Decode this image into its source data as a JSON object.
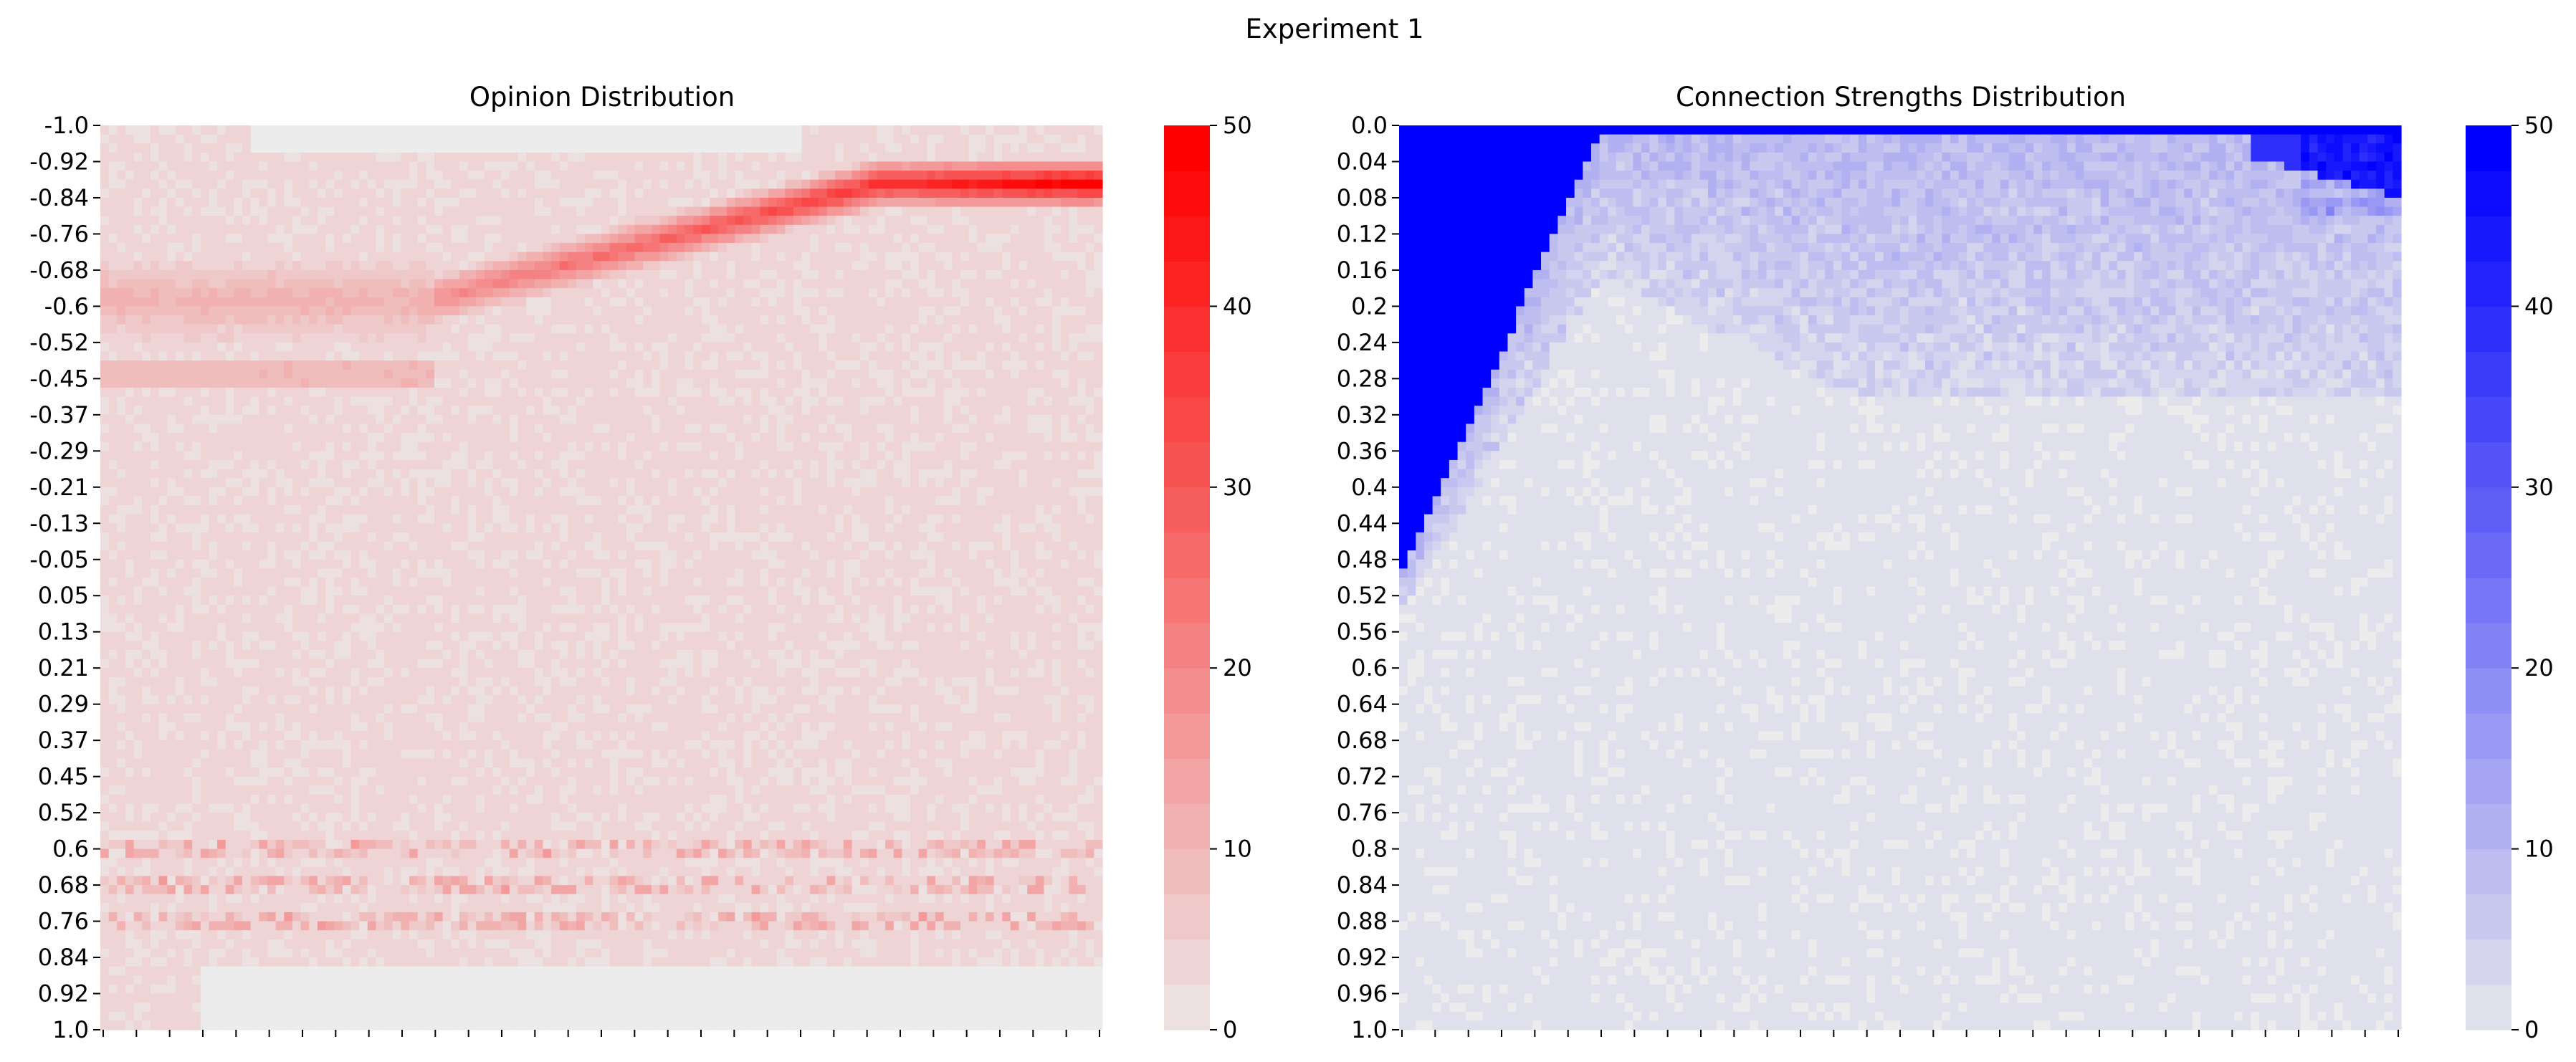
{
  "figure_title": "Experiment 1",
  "chart_data": [
    {
      "type": "heatmap",
      "title": "Opinion Distribution",
      "xlabel": "",
      "ylabel": "",
      "ytick_labels": [
        "-1.0",
        "-0.92",
        "-0.84",
        "-0.76",
        "-0.68",
        "-0.6",
        "-0.52",
        "-0.45",
        "-0.37",
        "-0.29",
        "-0.21",
        "-0.13",
        "-0.05",
        "0.05",
        "0.13",
        "0.21",
        "0.29",
        "0.37",
        "0.45",
        "0.52",
        "0.6",
        "0.68",
        "0.76",
        "0.84",
        "0.92",
        "1.0"
      ],
      "x_tick_count": 31,
      "x_tick_labels": [],
      "colorbar": {
        "min": 0,
        "max": 50,
        "ticks": [
          0,
          10,
          20,
          30,
          40,
          50
        ],
        "low_color": "#ececec",
        "high_color": "#ff0000",
        "levels": 20
      },
      "description_features": {
        "background_level": 3,
        "dense_band": {
          "start_opinion": -0.62,
          "end_opinion": -0.88,
          "start_col_fraction": 0.38,
          "peak_value": 48
        },
        "lower_band_opinions": [
          0.6,
          0.68,
          0.76
        ],
        "lower_band_value": 12
      }
    },
    {
      "type": "heatmap",
      "title": "Connection Strengths Distribution",
      "xlabel": "",
      "ylabel": "",
      "ytick_labels": [
        "0.0",
        "0.04",
        "0.08",
        "0.12",
        "0.16",
        "0.2",
        "0.24",
        "0.28",
        "0.32",
        "0.36",
        "0.4",
        "0.44",
        "0.48",
        "0.52",
        "0.56",
        "0.6",
        "0.64",
        "0.68",
        "0.72",
        "0.76",
        "0.8",
        "0.84",
        "0.88",
        "0.92",
        "0.96",
        "1.0"
      ],
      "x_tick_count": 31,
      "x_tick_labels": [],
      "colorbar": {
        "min": 0,
        "max": 50,
        "ticks": [
          0,
          10,
          20,
          30,
          40,
          50
        ],
        "low_color": "#ececec",
        "high_color": "#0000ff",
        "levels": 20
      },
      "description_features": {
        "saturated_wedge": {
          "max_strength_at_start": 0.49,
          "end_col_fraction": 0.2,
          "value": 50
        },
        "top_row_value": 50,
        "fade_zone_value": 6
      }
    }
  ]
}
